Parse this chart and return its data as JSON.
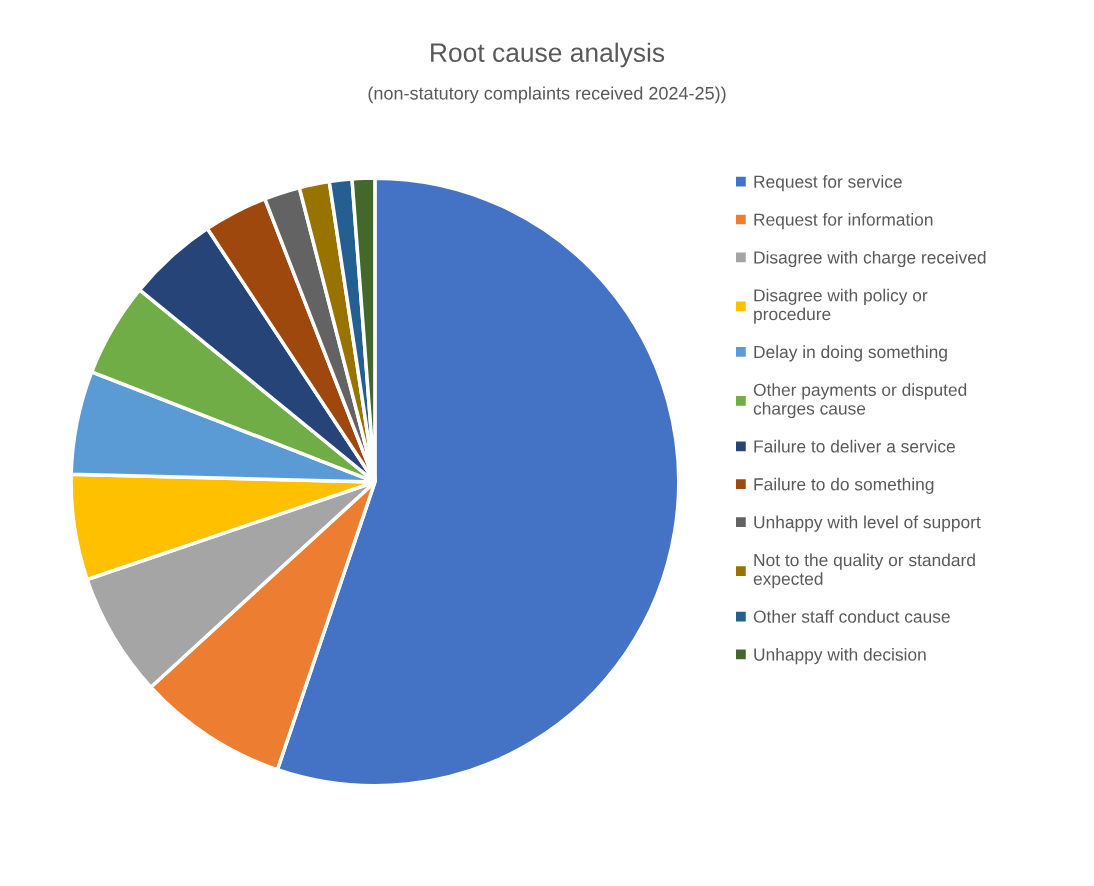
{
  "chart_data": {
    "type": "pie",
    "title": "Root cause analysis",
    "subtitle": "(non-statutory complaints received 2024-25))",
    "categories": [
      "Request for service",
      "Request for information",
      "Disagree with charge received",
      "Disagree with policy or procedure",
      "Delay in doing something",
      "Other payments or disputed charges cause",
      "Failure to deliver a service",
      "Failure to do something",
      "Unhappy with level of support",
      "Not to the quality or standard expected",
      "Other staff conduct cause",
      "Unhappy with decision"
    ],
    "values": [
      55.2,
      8.0,
      6.6,
      5.6,
      5.5,
      5.0,
      4.8,
      3.4,
      1.9,
      1.6,
      1.2,
      1.2
    ],
    "colors": [
      "#4472c4",
      "#ed7d31",
      "#a5a5a5",
      "#ffc000",
      "#5b9bd5",
      "#70ad47",
      "#264478",
      "#9e480e",
      "#636363",
      "#997300",
      "#255e91",
      "#43682b"
    ],
    "legend": "right"
  }
}
